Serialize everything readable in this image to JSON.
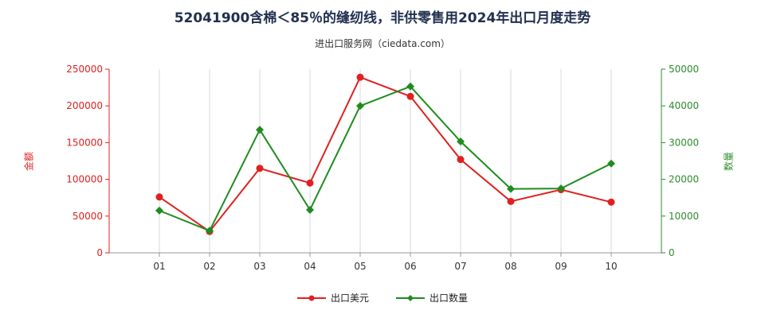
{
  "chart_data": {
    "type": "line",
    "title": "52041900含棉＜85％的缝纫线，非供零售用2024年出口月度走势",
    "subtitle": "进出口服务网（ciedata.com）",
    "categories": [
      "01",
      "02",
      "03",
      "04",
      "05",
      "06",
      "07",
      "08",
      "09",
      "10"
    ],
    "left_axis": {
      "label": "金额",
      "ylim": [
        0,
        250000
      ],
      "ticks": [
        "0",
        "50000",
        "100000",
        "150000",
        "200000",
        "250000"
      ],
      "color": "#e02020"
    },
    "right_axis": {
      "label": "数量",
      "ylim": [
        0,
        50000
      ],
      "ticks": [
        "0",
        "10000",
        "20000",
        "30000",
        "40000",
        "50000"
      ],
      "color": "#2e8b2e"
    },
    "series": [
      {
        "name": "出口美元",
        "axis": "left",
        "color": "#e02020",
        "marker": "circle",
        "values": [
          76000,
          29000,
          115000,
          95000,
          239000,
          213000,
          127000,
          70000,
          86000,
          69000
        ]
      },
      {
        "name": "出口数量",
        "axis": "right",
        "color": "#1e8c1e",
        "marker": "diamond",
        "values": [
          11500,
          6000,
          33500,
          11700,
          40000,
          45300,
          30300,
          17400,
          17500,
          24300
        ]
      }
    ],
    "grid": "vertical",
    "legend": "bottom-center"
  }
}
